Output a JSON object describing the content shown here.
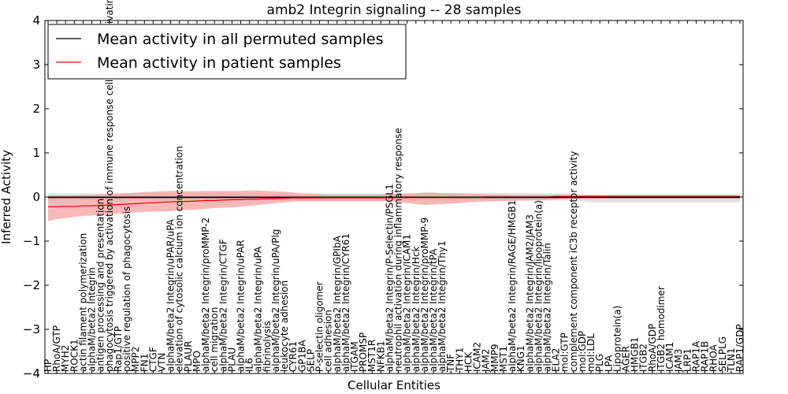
{
  "chart_data": {
    "type": "line",
    "title": "amb2 Integrin signaling -- 28 samples",
    "xlabel": "Cellular Entities",
    "ylabel": "Inferred Activity",
    "ylim": [
      -4,
      4
    ],
    "yticks": [
      -4,
      -3,
      -2,
      -1,
      0,
      1,
      2,
      3,
      4
    ],
    "legend_position": "top-left",
    "categories": [
      "HP",
      "RhoA/GTP",
      "MYH2",
      "ROCK1",
      "actin filament polymerization",
      "alphaM/beta2 Integrin",
      "antigen processing and presentation",
      "phagocytosis triggered by activation of immune response cell surface activating receptor",
      "Rap1/GTP",
      "positive regulation of phagocytosis",
      "MPP2",
      "FN1",
      "CTGF",
      "VTN",
      "alphaM/beta2 Integrin/uPAR/uPA",
      "elevation of cytosolic calcium ion concentration",
      "PLAUR",
      "MPO",
      "alphaM/beta2 Integrin/proMMP-2",
      "cell migration",
      "alphaM/beta2 Integrin/CTGF",
      "PLAU",
      "alphaM/beta2 Integrin/uPAR",
      "IL6",
      "alphaM/beta2 Integrin/uPA",
      "fibrinolysis",
      "alphaM/beta2 Integrin/uPA/Plg",
      "leukocyte adhesion",
      "CYR61",
      "GP1BA",
      "SELP",
      "P-selectin oligomer",
      "cell adhesion",
      "alphaM/beta2 Integrin/GPIbA",
      "alphaM/beta2 Integrin/CYR61",
      "ITGAM",
      "PROMSP",
      "MST1R",
      "NFKB1",
      "alphaM/beta2 Integrin/P-Selectin/PSGL1",
      "neutrophil activation during inflammatory response",
      "alphaM/beta2 Integrin/ICAM1",
      "alphaM/beta2 Integrin/Hck",
      "alphaM/beta2 Integrin/proMMP-9",
      "alphaM/beta2 Integrin/tPA",
      "alphaM/beta2 Integrin/Thy1",
      "TNF",
      "THY1",
      "HCK",
      "ICAM2",
      "JAM2",
      "MMP9",
      "MST1",
      "alphaM/beta2 Integrin/RAGE/HMGB1",
      "KNG1",
      "alphaM/beta2 Integrin/JAM2/JAM3",
      "alphaM/beta2 Integrin/lipoprotein(a)",
      "alphaM/beta2 Integrin/Talin",
      "ELA2",
      "mol:GTP",
      "complement component iC3b receptor activity",
      "mol:GDP",
      "mol:LDL",
      "PLG",
      "LPA",
      "Lipoprotein(a)",
      "AGER",
      "HMGB1",
      "ITGB2",
      "RhoA/GDP",
      "ITGB2 homodimer",
      "ICAM1",
      "JAM3",
      "LRP1",
      "RAP1A",
      "RAP1B",
      "RHOA",
      "SELPLG",
      "TLN1",
      "RAP1/GDP"
    ],
    "series": [
      {
        "name": "Mean activity in all permuted samples",
        "color": "#000000",
        "values": [
          -0.01,
          -0.01,
          -0.01,
          -0.01,
          -0.01,
          -0.01,
          -0.01,
          -0.01,
          -0.01,
          -0.01,
          -0.01,
          -0.01,
          -0.01,
          -0.01,
          -0.01,
          -0.01,
          -0.01,
          -0.01,
          -0.01,
          -0.01,
          -0.01,
          -0.01,
          -0.01,
          -0.01,
          -0.01,
          -0.01,
          -0.01,
          -0.01,
          -0.01,
          -0.01,
          -0.01,
          -0.01,
          -0.01,
          -0.01,
          -0.01,
          -0.01,
          -0.01,
          -0.01,
          -0.01,
          -0.01,
          -0.01,
          -0.01,
          -0.01,
          -0.01,
          -0.01,
          -0.01,
          -0.01,
          -0.01,
          -0.01,
          -0.01,
          -0.01,
          -0.01,
          -0.01,
          -0.01,
          -0.01,
          -0.01,
          -0.01,
          -0.01,
          -0.01,
          -0.01,
          -0.01,
          -0.01,
          -0.01,
          -0.01,
          -0.01,
          -0.01,
          -0.01,
          -0.01,
          -0.01,
          -0.01,
          -0.01,
          -0.01,
          -0.01,
          -0.01,
          -0.01,
          -0.01,
          -0.01,
          -0.01,
          -0.01,
          -0.01
        ],
        "band_color": "#c8c8c8",
        "lower": [
          -0.08,
          -0.08,
          -0.08,
          -0.08,
          -0.08,
          -0.08,
          -0.08,
          -0.08,
          -0.08,
          -0.08,
          -0.08,
          -0.08,
          -0.08,
          -0.08,
          -0.08,
          -0.08,
          -0.08,
          -0.08,
          -0.08,
          -0.08,
          -0.08,
          -0.08,
          -0.08,
          -0.08,
          -0.08,
          -0.08,
          -0.08,
          -0.08,
          -0.08,
          -0.08,
          -0.08,
          -0.08,
          -0.08,
          -0.08,
          -0.08,
          -0.08,
          -0.08,
          -0.08,
          -0.08,
          -0.08,
          -0.08,
          -0.08,
          -0.08,
          -0.08,
          -0.08,
          -0.08,
          -0.08,
          -0.08,
          -0.08,
          -0.08,
          -0.08,
          -0.08,
          -0.08,
          -0.08,
          -0.08,
          -0.08,
          -0.08,
          -0.08,
          -0.08,
          -0.08,
          -0.1,
          -0.1,
          -0.12,
          -0.12,
          -0.12,
          -0.12,
          -0.12,
          -0.12,
          -0.12,
          -0.12,
          -0.12,
          -0.12,
          -0.12,
          -0.12,
          -0.12,
          -0.12,
          -0.12,
          -0.12,
          -0.12,
          -0.12
        ],
        "upper": [
          0.08,
          0.08,
          0.08,
          0.08,
          0.08,
          0.08,
          0.08,
          0.08,
          0.08,
          0.08,
          0.08,
          0.08,
          0.08,
          0.08,
          0.08,
          0.08,
          0.08,
          0.08,
          0.08,
          0.08,
          0.08,
          0.08,
          0.08,
          0.08,
          0.08,
          0.08,
          0.08,
          0.08,
          0.08,
          0.08,
          0.08,
          0.08,
          0.08,
          0.08,
          0.08,
          0.08,
          0.08,
          0.08,
          0.08,
          0.08,
          0.08,
          0.08,
          0.08,
          0.08,
          0.08,
          0.08,
          0.08,
          0.08,
          0.08,
          0.08,
          0.08,
          0.08,
          0.08,
          0.08,
          0.08,
          0.08,
          0.08,
          0.08,
          0.08,
          0.08,
          0.06,
          0.06,
          0.05,
          0.05,
          0.05,
          0.05,
          0.05,
          0.05,
          0.05,
          0.05,
          0.05,
          0.05,
          0.05,
          0.05,
          0.05,
          0.05,
          0.05,
          0.05,
          0.05,
          0.05
        ]
      },
      {
        "name": "Mean activity in patient samples",
        "color": "#ff0000",
        "values": [
          -0.22,
          -0.22,
          -0.21,
          -0.21,
          -0.2,
          -0.2,
          -0.19,
          -0.18,
          -0.17,
          -0.16,
          -0.15,
          -0.14,
          -0.13,
          -0.12,
          -0.11,
          -0.1,
          -0.1,
          -0.09,
          -0.08,
          -0.08,
          -0.07,
          -0.06,
          -0.06,
          -0.05,
          -0.05,
          -0.04,
          -0.04,
          -0.03,
          -0.02,
          -0.02,
          -0.02,
          -0.02,
          -0.02,
          -0.02,
          -0.02,
          -0.02,
          -0.02,
          -0.02,
          -0.02,
          -0.01,
          -0.01,
          -0.01,
          -0.01,
          -0.01,
          -0.01,
          -0.01,
          -0.01,
          -0.01,
          -0.01,
          -0.01,
          0.0,
          0.0,
          0.0,
          0.0,
          0.0,
          0.0,
          0.0,
          0.0,
          0.01,
          0.01,
          0.01,
          0.01,
          0.01,
          0.01,
          0.01,
          0.01,
          0.01,
          0.01,
          0.01,
          0.01,
          0.01,
          0.01,
          0.01,
          0.01,
          0.01,
          0.01,
          0.01,
          0.01,
          0.01,
          0.01
        ],
        "band_color": "#f5a0a0",
        "lower": [
          -0.55,
          -0.5,
          -0.48,
          -0.45,
          -0.43,
          -0.42,
          -0.4,
          -0.39,
          -0.37,
          -0.36,
          -0.35,
          -0.34,
          -0.33,
          -0.33,
          -0.32,
          -0.3,
          -0.29,
          -0.28,
          -0.27,
          -0.25,
          -0.24,
          -0.23,
          -0.22,
          -0.2,
          -0.18,
          -0.16,
          -0.14,
          -0.12,
          -0.1,
          -0.1,
          -0.1,
          -0.1,
          -0.1,
          -0.1,
          -0.1,
          -0.1,
          -0.1,
          -0.1,
          -0.1,
          -0.1,
          -0.12,
          -0.14,
          -0.16,
          -0.18,
          -0.17,
          -0.16,
          -0.15,
          -0.14,
          -0.12,
          -0.11,
          -0.1,
          -0.1,
          -0.09,
          -0.09,
          -0.08,
          -0.08,
          -0.08,
          -0.07,
          -0.06,
          -0.05,
          -0.04,
          -0.04,
          -0.04,
          -0.04,
          -0.03,
          -0.03,
          -0.03,
          -0.03,
          -0.03,
          -0.03,
          -0.03,
          -0.03,
          -0.03,
          -0.03,
          -0.03,
          -0.03,
          -0.03,
          -0.03,
          -0.03,
          -0.03
        ],
        "upper": [
          0.03,
          0.03,
          0.04,
          0.04,
          0.05,
          0.05,
          0.06,
          0.07,
          0.08,
          0.09,
          0.1,
          0.11,
          0.12,
          0.13,
          0.14,
          0.14,
          0.13,
          0.13,
          0.14,
          0.14,
          0.14,
          0.14,
          0.14,
          0.15,
          0.15,
          0.14,
          0.13,
          0.12,
          0.1,
          0.08,
          0.07,
          0.06,
          0.05,
          0.05,
          0.05,
          0.05,
          0.05,
          0.05,
          0.05,
          0.06,
          0.07,
          0.08,
          0.09,
          0.1,
          0.1,
          0.09,
          0.09,
          0.08,
          0.08,
          0.07,
          0.07,
          0.06,
          0.06,
          0.05,
          0.05,
          0.05,
          0.05,
          0.05,
          0.05,
          0.05,
          0.05,
          0.05,
          0.05,
          0.05,
          0.05,
          0.05,
          0.05,
          0.05,
          0.05,
          0.05,
          0.05,
          0.05,
          0.05,
          0.05,
          0.05,
          0.05,
          0.05,
          0.05,
          0.05,
          0.05
        ]
      }
    ]
  }
}
